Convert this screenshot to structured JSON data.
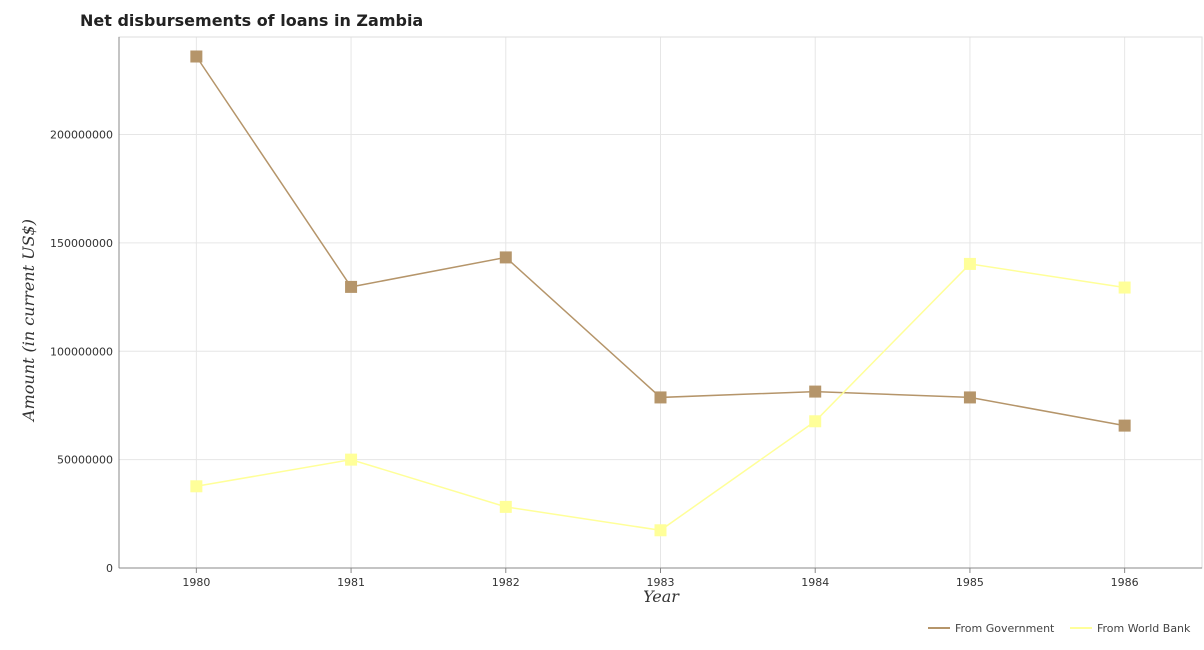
{
  "chart_data": {
    "type": "line",
    "title": "Net disbursements of loans in Zambia",
    "xlabel": "Year",
    "ylabel": "Amount (in current US$)",
    "categories": [
      "1980",
      "1981",
      "1982",
      "1983",
      "1984",
      "1985",
      "1986"
    ],
    "ylim": [
      0,
      245000000
    ],
    "yticks": [
      0,
      50000000,
      100000000,
      150000000,
      200000000
    ],
    "ytick_labels": [
      "0",
      "50000000",
      "100000000",
      "150000000",
      "200000000"
    ],
    "grid": true,
    "legend_position": "bottom-right",
    "series": [
      {
        "name": "From Government",
        "color": "#b5956a",
        "values": [
          236000000,
          129700000,
          143300000,
          78700000,
          81400000,
          78700000,
          65700000
        ]
      },
      {
        "name": "From World Bank",
        "color": "#ffff99",
        "values": [
          37700000,
          50000000,
          28200000,
          17400000,
          67700000,
          140300000,
          129400000
        ]
      }
    ]
  }
}
